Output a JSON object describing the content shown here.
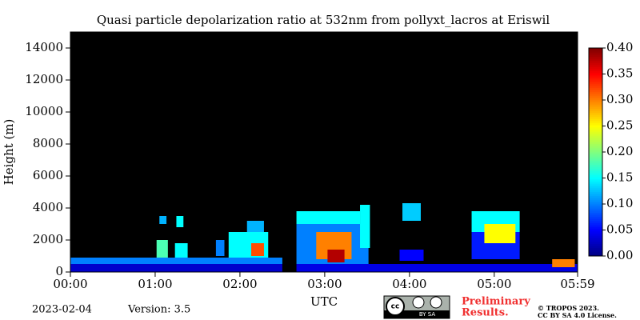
{
  "chart_data": {
    "type": "heatmap",
    "title": "Quasi particle depolarization ratio at 532nm from pollyxt_lacros at Eriswil",
    "ylabel": "Height (m)",
    "xlabel": "UTC",
    "date": "2023-02-04",
    "version": "Version: 3.5",
    "license_badge": {
      "cc": "cc",
      "terms": "BY SA"
    },
    "notice": [
      "Preliminary",
      "Results."
    ],
    "copyright": [
      "© TROPOS 2023.",
      "CC BY SA 4.0 License."
    ],
    "xlim": [
      0,
      359
    ],
    "xticks": [
      {
        "value": 0,
        "label": "00:00"
      },
      {
        "value": 60,
        "label": "01:00"
      },
      {
        "value": 120,
        "label": "02:00"
      },
      {
        "value": 180,
        "label": "03:00"
      },
      {
        "value": 240,
        "label": "04:00"
      },
      {
        "value": 300,
        "label": "05:00"
      },
      {
        "value": 359,
        "label": "05:59"
      }
    ],
    "ylim": [
      0,
      15000
    ],
    "yticks": [
      0,
      2000,
      4000,
      6000,
      8000,
      10000,
      12000,
      14000
    ],
    "clim": [
      0,
      0.4
    ],
    "cticks": [
      {
        "value": 0,
        "label": "0.00"
      },
      {
        "value": 0.05,
        "label": "0.05"
      },
      {
        "value": 0.1,
        "label": "0.10"
      },
      {
        "value": 0.15,
        "label": "0.15"
      },
      {
        "value": 0.2,
        "label": "0.20"
      },
      {
        "value": 0.25,
        "label": "0.25"
      },
      {
        "value": 0.3,
        "label": "0.30"
      },
      {
        "value": 0.35,
        "label": "0.35"
      },
      {
        "value": 0.4,
        "label": "0.40"
      }
    ],
    "colormap": "jet",
    "cells": [
      {
        "x0": 0,
        "x1": 150,
        "y0": 0,
        "y1": 500,
        "value": 0.03
      },
      {
        "x0": 0,
        "x1": 150,
        "y0": 500,
        "y1": 900,
        "value": 0.1
      },
      {
        "x0": 63,
        "x1": 68,
        "y0": 3000,
        "y1": 3500,
        "value": 0.12
      },
      {
        "x0": 75,
        "x1": 80,
        "y0": 2800,
        "y1": 3500,
        "value": 0.15
      },
      {
        "x0": 61,
        "x1": 69,
        "y0": 900,
        "y1": 2000,
        "value": 0.18
      },
      {
        "x0": 74,
        "x1": 83,
        "y0": 900,
        "y1": 1800,
        "value": 0.15
      },
      {
        "x0": 103,
        "x1": 109,
        "y0": 1000,
        "y1": 2000,
        "value": 0.1
      },
      {
        "x0": 112,
        "x1": 140,
        "y0": 900,
        "y1": 2500,
        "value": 0.15
      },
      {
        "x0": 128,
        "x1": 137,
        "y0": 1000,
        "y1": 1800,
        "value": 0.32
      },
      {
        "x0": 125,
        "x1": 137,
        "y0": 2500,
        "y1": 3200,
        "value": 0.12
      },
      {
        "x0": 160,
        "x1": 359,
        "y0": 0,
        "y1": 500,
        "value": 0.04
      },
      {
        "x0": 160,
        "x1": 211,
        "y0": 500,
        "y1": 3000,
        "value": 0.1
      },
      {
        "x0": 160,
        "x1": 205,
        "y0": 3000,
        "y1": 3800,
        "value": 0.15
      },
      {
        "x0": 174,
        "x1": 199,
        "y0": 800,
        "y1": 2500,
        "value": 0.3
      },
      {
        "x0": 182,
        "x1": 194,
        "y0": 600,
        "y1": 1400,
        "value": 0.38
      },
      {
        "x0": 205,
        "x1": 212,
        "y0": 1500,
        "y1": 4200,
        "value": 0.15
      },
      {
        "x0": 233,
        "x1": 250,
        "y0": 700,
        "y1": 1400,
        "value": 0.05
      },
      {
        "x0": 235,
        "x1": 248,
        "y0": 3200,
        "y1": 4300,
        "value": 0.13
      },
      {
        "x0": 284,
        "x1": 318,
        "y0": 800,
        "y1": 2500,
        "value": 0.06
      },
      {
        "x0": 284,
        "x1": 318,
        "y0": 2500,
        "y1": 3800,
        "value": 0.15
      },
      {
        "x0": 293,
        "x1": 315,
        "y0": 1800,
        "y1": 3000,
        "value": 0.25
      },
      {
        "x0": 341,
        "x1": 357,
        "y0": 300,
        "y1": 800,
        "value": 0.3
      }
    ]
  }
}
